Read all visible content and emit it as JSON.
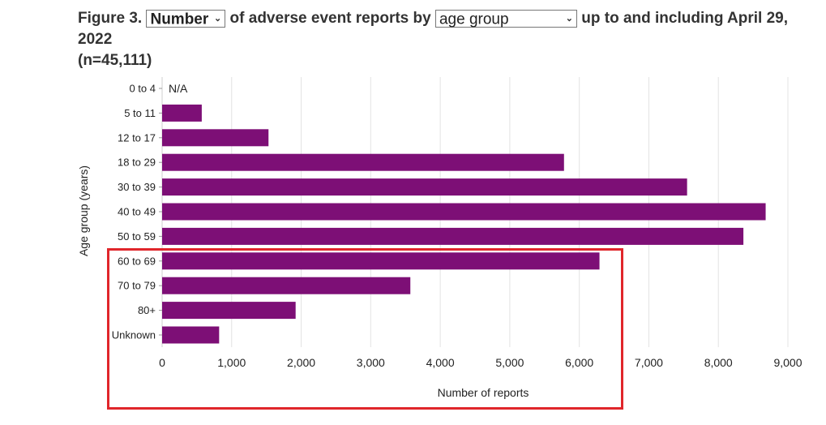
{
  "header": {
    "prefix": "Figure 3.",
    "measure_select": "Number",
    "middle": "of adverse event reports by",
    "group_select": "age group",
    "suffix": "up to and including April 29, 2022",
    "n": "(n=45,111)"
  },
  "chart_data": {
    "type": "bar",
    "orientation": "horizontal",
    "categories": [
      "0 to 4",
      "5 to 11",
      "12 to 17",
      "18 to 29",
      "30 to 39",
      "40 to 49",
      "50 to 59",
      "60 to 69",
      "70 to 79",
      "80+",
      "Unknown"
    ],
    "values": [
      null,
      570,
      1530,
      5780,
      7550,
      8680,
      8360,
      6290,
      3570,
      1920,
      820
    ],
    "annotations": [
      {
        "category": "0 to 4",
        "text": "N/A"
      }
    ],
    "xlabel": "Number of reports",
    "ylabel": "Age group (years)",
    "xlim": [
      0,
      9000
    ],
    "xticks": [
      0,
      1000,
      2000,
      3000,
      4000,
      5000,
      6000,
      7000,
      8000,
      9000
    ],
    "xtick_labels": [
      "0",
      "1,000",
      "2,000",
      "3,000",
      "4,000",
      "5,000",
      "6,000",
      "7,000",
      "8,000",
      "9,000"
    ],
    "grid": "vertical",
    "bar_color": "#7d0f76"
  },
  "highlight_color": "#e0262b"
}
